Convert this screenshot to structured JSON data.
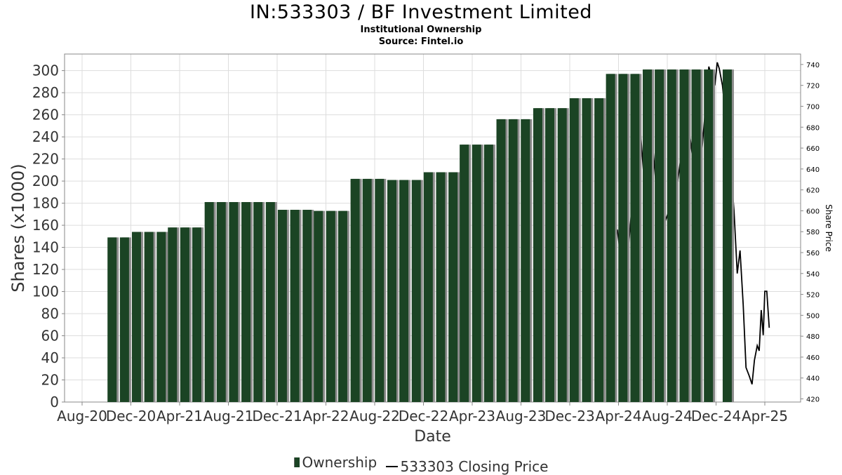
{
  "chart_data": {
    "type": "bar",
    "title": "IN:533303 / BF Investment Limited",
    "subtitle": "Institutional Ownership",
    "source": "Source: Fintel.io",
    "xlabel": "Date",
    "ylabel": "Shares (x1000)",
    "y2label": "Share Price",
    "ylim": [
      0,
      315
    ],
    "y2lim": [
      417,
      750
    ],
    "yticks": [
      0,
      20,
      40,
      60,
      80,
      100,
      120,
      140,
      160,
      180,
      200,
      220,
      240,
      260,
      280,
      300
    ],
    "y2ticks": [
      420,
      440,
      460,
      480,
      500,
      520,
      540,
      560,
      580,
      600,
      620,
      640,
      660,
      680,
      700,
      720,
      740
    ],
    "xtick_labels": [
      "Aug-20",
      "Dec-20",
      "Apr-21",
      "Aug-21",
      "Dec-21",
      "Apr-22",
      "Aug-22",
      "Dec-22",
      "Apr-23",
      "Aug-23",
      "Dec-23",
      "Apr-24",
      "Aug-24",
      "Dec-24",
      "Apr-25"
    ],
    "grid": true,
    "legend_position": "bottom",
    "colors": {
      "bar": "#1b4424",
      "bar_shadow": "#8c8c8c",
      "line": "#000000",
      "grid": "#dddddd"
    },
    "series": [
      {
        "name": "Ownership",
        "type": "bar",
        "points": [
          {
            "date": "2020-10-15",
            "value": 149
          },
          {
            "date": "2020-11-15",
            "value": 149
          },
          {
            "date": "2020-12-15",
            "value": 154
          },
          {
            "date": "2021-01-15",
            "value": 154
          },
          {
            "date": "2021-02-15",
            "value": 154
          },
          {
            "date": "2021-03-15",
            "value": 158
          },
          {
            "date": "2021-04-15",
            "value": 158
          },
          {
            "date": "2021-05-15",
            "value": 158
          },
          {
            "date": "2021-06-15",
            "value": 181
          },
          {
            "date": "2021-07-15",
            "value": 181
          },
          {
            "date": "2021-08-15",
            "value": 181
          },
          {
            "date": "2021-09-15",
            "value": 181
          },
          {
            "date": "2021-10-15",
            "value": 181
          },
          {
            "date": "2021-11-15",
            "value": 181
          },
          {
            "date": "2021-12-15",
            "value": 174
          },
          {
            "date": "2022-01-15",
            "value": 174
          },
          {
            "date": "2022-02-15",
            "value": 174
          },
          {
            "date": "2022-03-15",
            "value": 173
          },
          {
            "date": "2022-04-15",
            "value": 173
          },
          {
            "date": "2022-05-15",
            "value": 173
          },
          {
            "date": "2022-06-15",
            "value": 202
          },
          {
            "date": "2022-07-15",
            "value": 202
          },
          {
            "date": "2022-08-15",
            "value": 202
          },
          {
            "date": "2022-09-15",
            "value": 201
          },
          {
            "date": "2022-10-15",
            "value": 201
          },
          {
            "date": "2022-11-15",
            "value": 201
          },
          {
            "date": "2022-12-15",
            "value": 208
          },
          {
            "date": "2023-01-15",
            "value": 208
          },
          {
            "date": "2023-02-15",
            "value": 208
          },
          {
            "date": "2023-03-15",
            "value": 233
          },
          {
            "date": "2023-04-15",
            "value": 233
          },
          {
            "date": "2023-05-15",
            "value": 233
          },
          {
            "date": "2023-06-15",
            "value": 256
          },
          {
            "date": "2023-07-15",
            "value": 256
          },
          {
            "date": "2023-08-15",
            "value": 256
          },
          {
            "date": "2023-09-15",
            "value": 266
          },
          {
            "date": "2023-10-15",
            "value": 266
          },
          {
            "date": "2023-11-15",
            "value": 266
          },
          {
            "date": "2023-12-15",
            "value": 275
          },
          {
            "date": "2024-01-15",
            "value": 275
          },
          {
            "date": "2024-02-15",
            "value": 275
          },
          {
            "date": "2024-03-15",
            "value": 297
          },
          {
            "date": "2024-04-15",
            "value": 297
          },
          {
            "date": "2024-05-15",
            "value": 297
          },
          {
            "date": "2024-06-15",
            "value": 301
          },
          {
            "date": "2024-07-15",
            "value": 301
          },
          {
            "date": "2024-08-15",
            "value": 301
          },
          {
            "date": "2024-09-15",
            "value": 301
          },
          {
            "date": "2024-10-15",
            "value": 301
          },
          {
            "date": "2024-11-15",
            "value": 301
          },
          {
            "date": "2025-01-01",
            "value": 301
          }
        ]
      },
      {
        "name": "533303 Closing Price",
        "type": "line",
        "points": [
          {
            "date": "2024-03-18",
            "value": 590
          },
          {
            "date": "2024-03-25",
            "value": 575
          },
          {
            "date": "2024-04-01",
            "value": 582
          },
          {
            "date": "2024-04-08",
            "value": 560
          },
          {
            "date": "2024-04-15",
            "value": 545
          },
          {
            "date": "2024-04-22",
            "value": 538
          },
          {
            "date": "2024-05-01",
            "value": 575
          },
          {
            "date": "2024-05-10",
            "value": 615
          },
          {
            "date": "2024-05-20",
            "value": 655
          },
          {
            "date": "2024-05-28",
            "value": 680
          },
          {
            "date": "2024-06-05",
            "value": 640
          },
          {
            "date": "2024-06-12",
            "value": 600
          },
          {
            "date": "2024-06-20",
            "value": 640
          },
          {
            "date": "2024-06-28",
            "value": 665
          },
          {
            "date": "2024-07-08",
            "value": 620
          },
          {
            "date": "2024-07-18",
            "value": 590
          },
          {
            "date": "2024-07-28",
            "value": 588
          },
          {
            "date": "2024-08-08",
            "value": 600
          },
          {
            "date": "2024-08-20",
            "value": 640
          },
          {
            "date": "2024-08-30",
            "value": 628
          },
          {
            "date": "2024-09-10",
            "value": 660
          },
          {
            "date": "2024-09-20",
            "value": 685
          },
          {
            "date": "2024-09-30",
            "value": 670
          },
          {
            "date": "2024-10-10",
            "value": 640
          },
          {
            "date": "2024-10-20",
            "value": 620
          },
          {
            "date": "2024-10-30",
            "value": 660
          },
          {
            "date": "2024-11-08",
            "value": 700
          },
          {
            "date": "2024-11-16",
            "value": 738
          },
          {
            "date": "2024-11-24",
            "value": 728
          },
          {
            "date": "2024-12-01",
            "value": 720
          },
          {
            "date": "2024-12-07",
            "value": 742
          },
          {
            "date": "2024-12-12",
            "value": 736
          },
          {
            "date": "2024-12-20",
            "value": 720
          },
          {
            "date": "2024-12-28",
            "value": 690
          },
          {
            "date": "2025-01-08",
            "value": 650
          },
          {
            "date": "2025-01-18",
            "value": 600
          },
          {
            "date": "2025-01-26",
            "value": 540
          },
          {
            "date": "2025-02-02",
            "value": 562
          },
          {
            "date": "2025-02-10",
            "value": 510
          },
          {
            "date": "2025-02-17",
            "value": 450
          },
          {
            "date": "2025-02-25",
            "value": 442
          },
          {
            "date": "2025-03-04",
            "value": 434
          },
          {
            "date": "2025-03-10",
            "value": 457
          },
          {
            "date": "2025-03-17",
            "value": 471
          },
          {
            "date": "2025-03-22",
            "value": 466
          },
          {
            "date": "2025-03-27",
            "value": 505
          },
          {
            "date": "2025-04-01",
            "value": 481
          },
          {
            "date": "2025-04-05",
            "value": 523
          },
          {
            "date": "2025-04-10",
            "value": 523
          },
          {
            "date": "2025-04-16",
            "value": 488
          }
        ]
      }
    ]
  },
  "legend": {
    "ownership_label": "Ownership",
    "price_label": "533303 Closing Price"
  }
}
